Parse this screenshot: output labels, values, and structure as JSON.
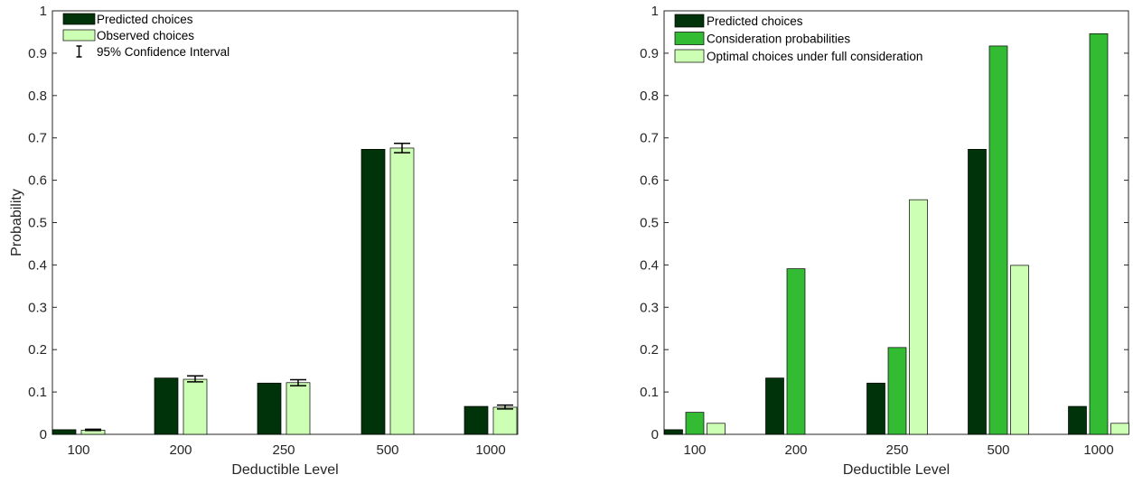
{
  "chart_data": [
    {
      "type": "bar",
      "categories": [
        "100",
        "200",
        "250",
        "500",
        "1000"
      ],
      "xlabel": "Deductible Level",
      "ylabel": "Probability",
      "ylim": [
        0,
        1
      ],
      "yticks": [
        "0",
        "0.1",
        "0.2",
        "0.3",
        "0.4",
        "0.5",
        "0.6",
        "0.7",
        "0.8",
        "0.9",
        "1"
      ],
      "grid": false,
      "legend_position": "top-left",
      "series": [
        {
          "name": "Predicted choices",
          "color": "#00330a",
          "values": [
            0.011,
            0.133,
            0.121,
            0.673,
            0.066
          ]
        },
        {
          "name": "Observed choices",
          "color": "#ccffb3",
          "values": [
            0.01,
            0.13,
            0.122,
            0.676,
            0.064
          ]
        }
      ],
      "error_bars": {
        "name": "95% Confidence Interval",
        "series": "Observed choices",
        "lower": [
          0.009,
          0.124,
          0.115,
          0.665,
          0.06
        ],
        "upper": [
          0.012,
          0.138,
          0.129,
          0.687,
          0.069
        ]
      }
    },
    {
      "type": "bar",
      "categories": [
        "100",
        "200",
        "250",
        "500",
        "1000"
      ],
      "xlabel": "Deductible Level",
      "ylabel": "",
      "ylim": [
        0,
        1
      ],
      "yticks": [
        "0",
        "0.1",
        "0.2",
        "0.3",
        "0.4",
        "0.5",
        "0.6",
        "0.7",
        "0.8",
        "0.9",
        "1"
      ],
      "grid": false,
      "legend_position": "top-left",
      "series": [
        {
          "name": "Predicted choices",
          "color": "#00330a",
          "values": [
            0.011,
            0.133,
            0.121,
            0.673,
            0.066
          ]
        },
        {
          "name": "Consideration probabilities",
          "color": "#33bb33",
          "values": [
            0.052,
            0.391,
            0.205,
            0.917,
            0.946
          ]
        },
        {
          "name": "Optimal choices under full consideration",
          "color": "#ccffb3",
          "values": [
            0.026,
            0.0,
            0.554,
            0.399,
            0.026
          ]
        }
      ]
    }
  ]
}
